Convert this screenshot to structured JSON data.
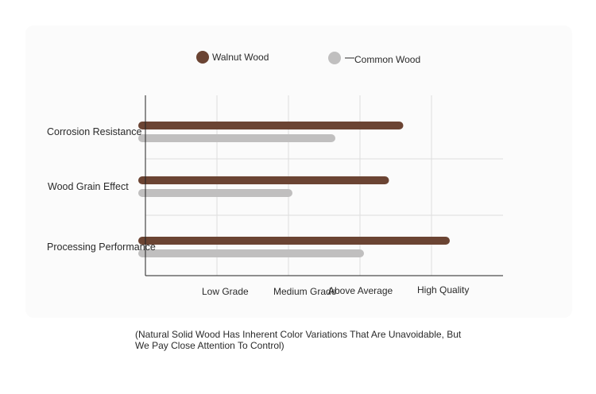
{
  "chart_data": {
    "type": "bar",
    "orientation": "horizontal",
    "categories": [
      "Corrosion Resistance",
      "Wood Grain Effect",
      "Processing Performance"
    ],
    "series": [
      {
        "name": "Walnut Wood",
        "color": "#6b4433",
        "values": [
          3.55,
          3.35,
          4.2
        ]
      },
      {
        "name": "Common Wood",
        "color": "#c0bfbf",
        "values": [
          2.6,
          2.0,
          3.0
        ]
      }
    ],
    "x_tick_labels": [
      "Low Grade",
      "Medium Grade",
      "Above Average",
      "High Quality"
    ],
    "xlim": [
      0,
      5
    ],
    "grid": true,
    "legend_position": "top"
  },
  "note": "(Natural Solid Wood Has Inherent Color Variations That Are Unavoidable, But We Pay Close Attention To Control)",
  "colors": {
    "background": "#ffffff",
    "panel": "#fbfbfb",
    "grid": "#dedede",
    "axis": "#222222"
  }
}
